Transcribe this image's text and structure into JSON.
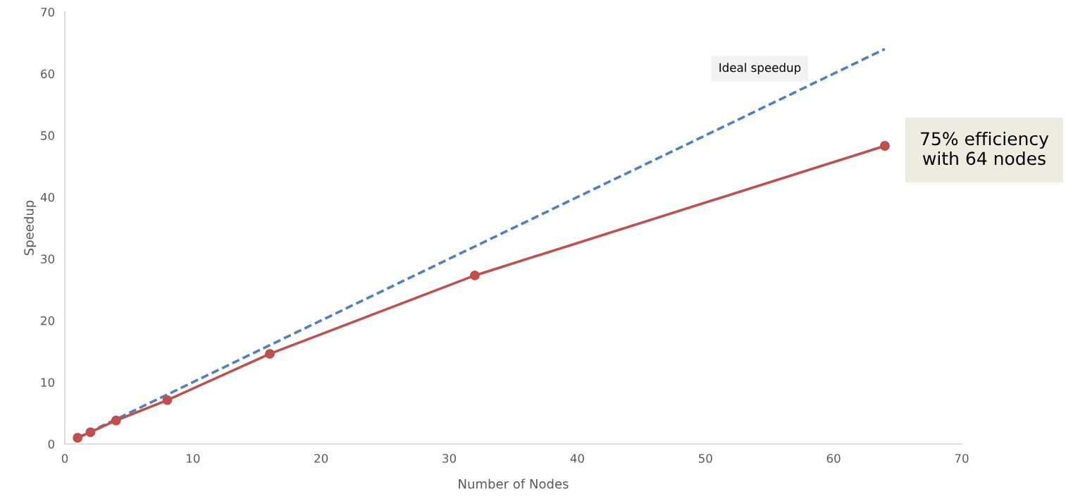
{
  "chart_data": {
    "type": "line",
    "xlabel": "Number of Nodes",
    "ylabel": "Speedup",
    "x": [
      1,
      2,
      4,
      8,
      16,
      32,
      64
    ],
    "series": [
      {
        "name": "Ideal speedup",
        "color": "#4f81bd",
        "values": [
          1,
          2,
          4,
          8,
          16,
          32,
          64
        ],
        "line_style": "dashed",
        "marker": "none"
      },
      {
        "color": "#c0504d",
        "values": [
          1.0,
          1.9,
          3.8,
          7.1,
          14.6,
          27.3,
          48.3
        ],
        "line_style": "solid",
        "marker": "circle"
      }
    ],
    "annotations": [
      "75% efficiency\nwith 64 nodes"
    ],
    "xlim": [
      0,
      70
    ],
    "xticks": [
      0,
      10,
      20,
      30,
      40,
      50,
      60,
      70
    ],
    "ylim": [
      0,
      70
    ],
    "yticks": [
      0,
      10,
      20,
      30,
      40,
      50,
      60,
      70
    ],
    "grid": false,
    "legend": false
  }
}
